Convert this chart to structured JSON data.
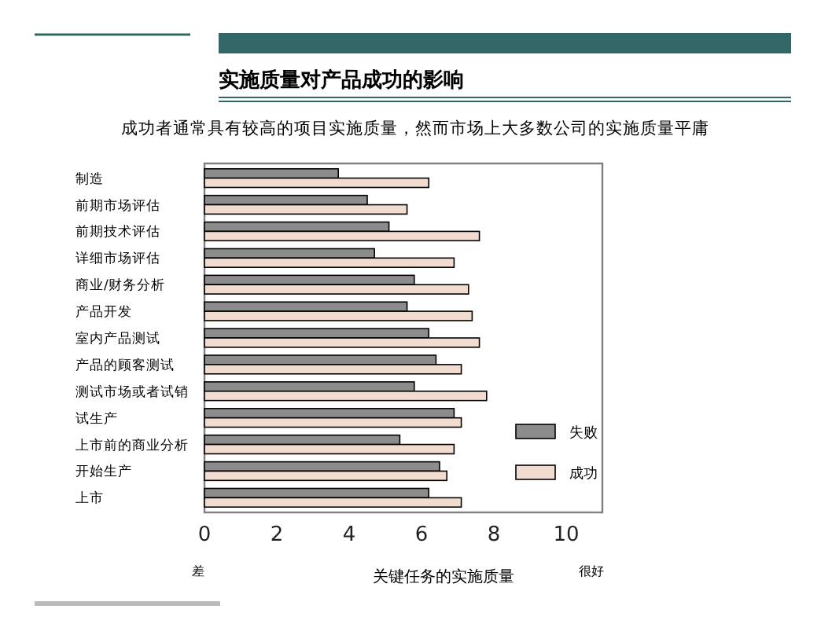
{
  "chart_data": {
    "type": "bar",
    "orientation": "horizontal",
    "title": "实施质量对产品成功的影响",
    "subtitle": "成功者通常具有较高的项目实施质量，然而市场上大多数公司的实施质量平庸",
    "xlabel": "关键任务的实施质量",
    "categories": [
      "制造",
      "前期市场评估",
      "前期技术评估",
      "详细市场评估",
      "商业/财务分析",
      "产品开发",
      "室内产品测试",
      "产品的顾客测试",
      "测试市场或者试销",
      "试生产",
      "上市前的商业分析",
      "开始生产",
      "上市"
    ],
    "series": [
      {
        "name": "失败",
        "color": "#8c8c8c",
        "values": [
          3.7,
          4.5,
          5.1,
          4.7,
          5.8,
          5.6,
          6.2,
          6.4,
          5.8,
          6.9,
          5.4,
          6.5,
          6.2
        ]
      },
      {
        "name": "成功",
        "color": "#f2dcd0",
        "values": [
          6.2,
          5.6,
          7.6,
          6.9,
          7.3,
          7.4,
          7.6,
          7.1,
          7.8,
          7.1,
          6.9,
          6.7,
          7.1
        ]
      }
    ],
    "xlim": [
      0,
      11
    ],
    "xticks": [
      0,
      2,
      4,
      6,
      8,
      10
    ],
    "legend": "right",
    "annotations": [
      "差",
      "很好"
    ]
  }
}
